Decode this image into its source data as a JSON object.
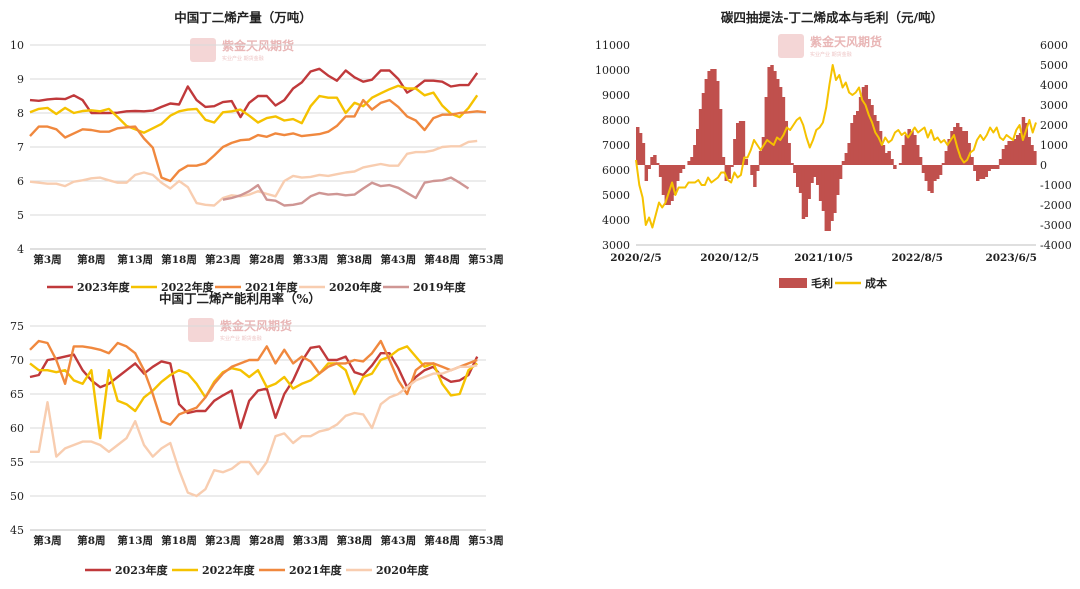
{
  "chart_data": [
    {
      "id": "c1",
      "type": "line",
      "title": "中国丁二烯产量（万吨）",
      "watermark": "紫金天风期货",
      "watermark_sub": "实业产业  期货金融",
      "ylim": [
        4,
        10
      ],
      "yticks": [
        "4",
        "5",
        "6",
        "7",
        "8",
        "9",
        "10"
      ],
      "xticks": [
        {
          "label": "第3周",
          "week": 3
        },
        {
          "label": "第8周",
          "week": 8
        },
        {
          "label": "第13周",
          "week": 13
        },
        {
          "label": "第18周",
          "week": 18
        },
        {
          "label": "第23周",
          "week": 23
        },
        {
          "label": "第28周",
          "week": 28
        },
        {
          "label": "第33周",
          "week": 33
        },
        {
          "label": "第38周",
          "week": 38
        },
        {
          "label": "第43周",
          "week": 43
        },
        {
          "label": "第48周",
          "week": 48
        },
        {
          "label": "第53周",
          "week": 53
        }
      ],
      "xrange": [
        1,
        53
      ],
      "series": [
        {
          "name": "2023年度",
          "color": "#c0393b",
          "x_start": 1,
          "values": [
            8.38,
            8.36,
            8.4,
            8.42,
            8.41,
            8.52,
            8.38,
            8.0,
            8.0,
            8.0,
            8.01,
            8.05,
            8.06,
            8.05,
            8.07,
            8.18,
            8.28,
            8.25,
            8.78,
            8.38,
            8.18,
            8.2,
            8.32,
            8.35,
            7.88,
            8.3,
            8.5,
            8.5,
            8.22,
            8.38,
            8.72,
            8.9,
            9.22,
            9.3,
            9.1,
            8.95,
            9.25,
            9.05,
            8.92,
            8.98,
            9.25,
            9.25,
            9.0,
            8.6,
            8.75,
            8.95,
            8.95,
            8.92,
            8.78,
            8.82,
            8.82,
            9.18
          ]
        },
        {
          "name": "2022年度",
          "color": "#f5c200",
          "x_start": 1,
          "values": [
            8.02,
            8.12,
            8.15,
            7.97,
            8.15,
            8.0,
            8.06,
            8.08,
            8.05,
            8.12,
            7.88,
            7.62,
            7.52,
            7.42,
            7.55,
            7.68,
            7.92,
            8.05,
            8.1,
            8.12,
            7.8,
            7.72,
            8.02,
            8.05,
            8.1,
            7.92,
            7.72,
            7.85,
            7.9,
            7.78,
            7.82,
            7.7,
            8.2,
            8.5,
            8.45,
            8.45,
            8.0,
            8.3,
            8.2,
            8.45,
            8.58,
            8.7,
            8.8,
            8.72,
            8.72,
            8.52,
            8.6,
            8.22,
            7.98,
            7.88,
            8.15,
            8.52
          ]
        },
        {
          "name": "2021年度",
          "color": "#f0883e",
          "x_start": 1,
          "values": [
            7.32,
            7.6,
            7.6,
            7.52,
            7.28,
            7.4,
            7.52,
            7.5,
            7.45,
            7.45,
            7.55,
            7.58,
            7.6,
            7.25,
            6.98,
            6.1,
            6.0,
            6.3,
            6.45,
            6.45,
            6.52,
            6.75,
            7.0,
            7.12,
            7.2,
            7.22,
            7.35,
            7.3,
            7.4,
            7.35,
            7.4,
            7.32,
            7.35,
            7.38,
            7.45,
            7.62,
            7.9,
            7.9,
            8.38,
            8.1,
            8.3,
            8.38,
            8.18,
            7.9,
            7.78,
            7.5,
            7.85,
            7.95,
            7.95,
            8.0,
            8.02,
            8.05,
            8.02
          ]
        },
        {
          "name": "2020年度",
          "color": "#f8cdb0",
          "x_start": 1,
          "values": [
            5.98,
            5.95,
            5.92,
            5.92,
            5.85,
            5.98,
            6.02,
            6.08,
            6.1,
            6.02,
            5.95,
            5.95,
            6.18,
            6.25,
            6.18,
            5.95,
            5.78,
            6.0,
            5.82,
            5.35,
            5.3,
            5.28,
            5.5,
            5.58,
            5.55,
            5.6,
            5.7,
            5.62,
            5.55,
            6.0,
            6.15,
            6.1,
            6.12,
            6.18,
            6.15,
            6.2,
            6.25,
            6.28,
            6.4,
            6.45,
            6.5,
            6.45,
            6.45,
            6.8,
            6.85,
            6.85,
            6.9,
            7.0,
            7.02,
            7.02,
            7.15,
            7.18
          ]
        },
        {
          "name": "2019年度",
          "color": "#cf9694",
          "x_start": 23,
          "values": [
            5.45,
            5.5,
            5.58,
            5.7,
            5.88,
            5.45,
            5.42,
            5.28,
            5.3,
            5.35,
            5.55,
            5.65,
            5.6,
            5.62,
            5.58,
            5.6,
            5.78,
            5.95,
            5.85,
            5.88,
            5.8,
            5.65,
            5.5,
            5.95,
            6.0,
            6.02,
            6.1,
            5.95,
            5.78
          ]
        }
      ]
    },
    {
      "id": "c2",
      "type": "bar+line",
      "title": "碳四抽提法-丁二烯成本与毛利（元/吨）",
      "watermark": "紫金天风期货",
      "watermark_sub": "实业产业  期货金融",
      "ylim_left": [
        3000,
        11000
      ],
      "ylim_right": [
        -4000,
        6000
      ],
      "yticks_left": [
        "3000",
        "4000",
        "5000",
        "6000",
        "7000",
        "8000",
        "9000",
        "10000",
        "11000"
      ],
      "yticks_right": [
        "-4000",
        "-3000",
        "-2000",
        "-1000",
        "0",
        "1000",
        "2000",
        "3000",
        "4000",
        "5000",
        "6000"
      ],
      "xticks": [
        {
          "label": "2020/2/5",
          "t": 0
        },
        {
          "label": "2020/12/5",
          "t": 0.234
        },
        {
          "label": "2021/10/5",
          "t": 0.469
        },
        {
          "label": "2022/8/5",
          "t": 0.703
        },
        {
          "label": "2023/6/5",
          "t": 0.938
        }
      ],
      "series": [
        {
          "name": "毛利",
          "color": "#c0504d",
          "kind": "bar",
          "axis": "right",
          "values": [
            1900,
            1600,
            1100,
            -800,
            -200,
            400,
            500,
            100,
            -600,
            -1500,
            -2000,
            -2000,
            -1800,
            -1500,
            -800,
            -400,
            -200,
            0,
            200,
            400,
            1000,
            1800,
            2800,
            3600,
            4300,
            4700,
            4800,
            4800,
            4200,
            2800,
            400,
            -800,
            -700,
            -100,
            1300,
            2100,
            2200,
            2200,
            300,
            0,
            -500,
            -1100,
            -300,
            700,
            1400,
            3400,
            4900,
            5000,
            4700,
            4300,
            3900,
            3400,
            2200,
            1100,
            100,
            -400,
            -1100,
            -1400,
            -2700,
            -2600,
            -1700,
            -900,
            -600,
            -1000,
            -1800,
            -2300,
            -3300,
            -3300,
            -2800,
            -2400,
            -1500,
            -700,
            200,
            600,
            1100,
            2100,
            2500,
            2700,
            3400,
            3900,
            4000,
            3300,
            3000,
            2500,
            2200,
            1700,
            1000,
            600,
            700,
            300,
            -200,
            0,
            100,
            1000,
            1500,
            1800,
            1700,
            1500,
            1000,
            400,
            -400,
            -800,
            -1300,
            -1400,
            -800,
            -700,
            -500,
            100,
            700,
            1300,
            1700,
            1900,
            2100,
            1900,
            1700,
            1700,
            1100,
            400,
            -300,
            -800,
            -700,
            -700,
            -600,
            -300,
            -200,
            -200,
            -200,
            300,
            800,
            1000,
            1200,
            1200,
            1300,
            1500,
            1600,
            2400,
            2100,
            1400,
            1000,
            700
          ]
        },
        {
          "name": "成本",
          "color": "#f5c200",
          "kind": "line",
          "axis": "left",
          "values": [
            6400,
            5400,
            4900,
            3800,
            4100,
            3700,
            4200,
            4700,
            4500,
            4700,
            5100,
            5500,
            5000,
            5300,
            5300,
            5300,
            5500,
            5500,
            5500,
            5600,
            5400,
            5400,
            5700,
            5500,
            5600,
            5700,
            5900,
            5900,
            5600,
            5500,
            5900,
            5700,
            5800,
            6500,
            6500,
            6800,
            7200,
            7000,
            6800,
            7000,
            7200,
            7100,
            7000,
            7300,
            7200,
            7400,
            7700,
            7600,
            7800,
            8000,
            8100,
            7800,
            7300,
            6900,
            7200,
            7600,
            7700,
            7900,
            8500,
            9400,
            10200,
            9600,
            9800,
            9300,
            9500,
            9100,
            9000,
            9100,
            9300,
            8800,
            8600,
            8200,
            7900,
            7500,
            7300,
            7000,
            7300,
            7100,
            7200,
            7500,
            7600,
            7400,
            7500,
            7300,
            7500,
            7700,
            7500,
            7600,
            7700,
            7300,
            7600,
            7200,
            7300,
            7100,
            7200,
            7000,
            7200,
            7400,
            6900,
            6500,
            6300,
            6400,
            6700,
            6800,
            7200,
            7400,
            7200,
            7400,
            7700,
            7500,
            7700,
            7300,
            7200,
            7400,
            7300,
            7200,
            7600,
            7800,
            7200,
            7600,
            8000,
            7500,
            7900
          ]
        }
      ]
    },
    {
      "id": "c3",
      "type": "line",
      "title": "中国丁二烯产能利用率（%）",
      "watermark": "紫金天风期货",
      "watermark_sub": "实业产业  期货金融",
      "ylim": [
        45,
        75
      ],
      "yticks": [
        "45",
        "50",
        "55",
        "60",
        "65",
        "70",
        "75"
      ],
      "xticks": [
        {
          "label": "第3周",
          "week": 3
        },
        {
          "label": "第8周",
          "week": 8
        },
        {
          "label": "第13周",
          "week": 13
        },
        {
          "label": "第18周",
          "week": 18
        },
        {
          "label": "第23周",
          "week": 23
        },
        {
          "label": "第28周",
          "week": 28
        },
        {
          "label": "第33周",
          "week": 33
        },
        {
          "label": "第38周",
          "week": 38
        },
        {
          "label": "第43周",
          "week": 43
        },
        {
          "label": "第48周",
          "week": 48
        },
        {
          "label": "第53周",
          "week": 53
        }
      ],
      "xrange": [
        1,
        53
      ],
      "series": [
        {
          "name": "2023年度",
          "color": "#c0393b",
          "x_start": 1,
          "values": [
            67.5,
            67.8,
            70.0,
            70.2,
            70.5,
            70.8,
            68.5,
            67.0,
            66.0,
            66.5,
            67.5,
            68.5,
            69.5,
            68.0,
            69.0,
            69.8,
            69.5,
            63.5,
            62.2,
            62.5,
            62.5,
            64.0,
            64.8,
            65.5,
            60.0,
            64.0,
            65.5,
            65.8,
            61.5,
            65.0,
            67.0,
            69.8,
            71.8,
            72.0,
            70.0,
            70.0,
            70.5,
            68.2,
            67.8,
            69.2,
            71.0,
            71.0,
            68.8,
            66.0,
            67.5,
            68.5,
            69.0,
            67.5,
            66.8,
            67.0,
            67.8,
            70.5
          ]
        },
        {
          "name": "2022年度",
          "color": "#f5c200",
          "x_start": 1,
          "values": [
            69.5,
            68.5,
            68.5,
            68.2,
            68.5,
            67.0,
            66.5,
            68.5,
            58.5,
            68.5,
            64.0,
            63.5,
            62.5,
            64.5,
            65.5,
            66.8,
            67.8,
            68.5,
            68.0,
            66.5,
            64.5,
            66.8,
            68.2,
            68.8,
            68.5,
            67.5,
            68.5,
            66.0,
            66.5,
            67.5,
            65.8,
            66.5,
            67.0,
            68.0,
            69.5,
            69.5,
            68.5,
            65.0,
            67.5,
            68.0,
            70.0,
            70.5,
            71.5,
            72.0,
            70.5,
            69.0,
            69.5,
            66.5,
            64.8,
            65.0,
            68.5,
            69.5
          ]
        },
        {
          "name": "2021年度",
          "color": "#f0883e",
          "x_start": 1,
          "values": [
            71.5,
            72.8,
            72.5,
            70.0,
            66.5,
            72.0,
            72.0,
            71.8,
            71.5,
            71.0,
            72.5,
            72.0,
            71.0,
            68.5,
            65.0,
            61.0,
            60.5,
            62.0,
            62.5,
            63.0,
            64.5,
            66.5,
            68.0,
            69.0,
            69.5,
            70.0,
            70.0,
            72.0,
            69.5,
            71.5,
            69.5,
            70.5,
            69.8,
            68.0,
            69.0,
            69.5,
            69.5,
            70.0,
            69.8,
            71.0,
            72.8,
            70.0,
            67.0,
            65.0,
            68.5,
            69.5,
            69.5,
            69.0,
            68.5,
            69.0,
            69.5,
            70.0
          ]
        },
        {
          "name": "2020年度",
          "color": "#f8cdb0",
          "x_start": 1,
          "values": [
            56.5,
            56.5,
            63.8,
            55.8,
            57.0,
            57.5,
            58.0,
            58.0,
            57.5,
            56.5,
            57.5,
            58.5,
            61.0,
            57.5,
            55.8,
            57.0,
            57.8,
            53.8,
            50.5,
            50.0,
            51.0,
            53.8,
            53.5,
            54.0,
            55.0,
            55.0,
            53.2,
            55.0,
            58.8,
            59.2,
            57.8,
            58.8,
            58.8,
            59.5,
            59.8,
            60.5,
            61.8,
            62.2,
            62.0,
            60.0,
            63.5,
            64.5,
            65.0,
            66.0,
            67.0,
            67.5,
            68.0,
            68.0,
            68.5,
            69.0,
            69.0,
            69.2
          ]
        }
      ]
    }
  ]
}
